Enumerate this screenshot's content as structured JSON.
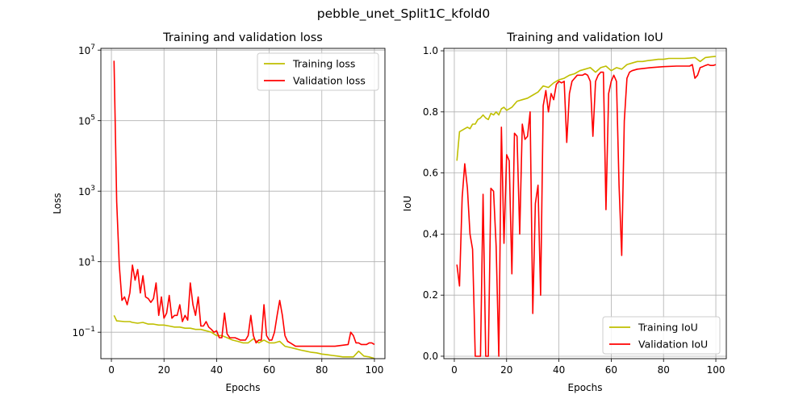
{
  "figure": {
    "suptitle": "pebble_unet_Split1C_kfold0"
  },
  "colors": {
    "training": "#bfbf00",
    "validation": "#ff0000",
    "grid": "#b0b0b0"
  },
  "chart_data": [
    {
      "type": "line",
      "title": "Training and validation loss",
      "xlabel": "Epochs",
      "ylabel": "Loss",
      "yscale": "log",
      "xlim": [
        -4,
        104
      ],
      "ylim_log10": [
        -1.75,
        7.05
      ],
      "xticks": [
        0,
        20,
        40,
        60,
        80,
        100
      ],
      "yticks": [
        {
          "value": 0.1,
          "base": "10",
          "exp": "−1"
        },
        {
          "value": 10,
          "base": "10",
          "exp": "1"
        },
        {
          "value": 1000,
          "base": "10",
          "exp": "3"
        },
        {
          "value": 100000,
          "base": "10",
          "exp": "5"
        },
        {
          "value": 10000000,
          "base": "10",
          "exp": "7"
        }
      ],
      "grid": true,
      "legend": "top-right",
      "series": [
        {
          "name": "Training loss",
          "x": [
            1,
            2,
            5,
            7,
            8,
            10,
            12,
            14,
            16,
            18,
            20,
            22,
            24,
            26,
            28,
            30,
            32,
            34,
            36,
            38,
            40,
            42,
            44,
            46,
            48,
            50,
            52,
            54,
            56,
            58,
            60,
            62,
            64,
            66,
            68,
            70,
            72,
            74,
            76,
            78,
            80,
            82,
            84,
            86,
            88,
            90,
            92,
            94,
            96,
            98,
            100
          ],
          "y": [
            0.3,
            0.21,
            0.2,
            0.2,
            0.19,
            0.18,
            0.19,
            0.17,
            0.17,
            0.16,
            0.16,
            0.15,
            0.14,
            0.14,
            0.13,
            0.13,
            0.12,
            0.12,
            0.11,
            0.1,
            0.08,
            0.08,
            0.07,
            0.06,
            0.055,
            0.05,
            0.05,
            0.065,
            0.05,
            0.06,
            0.05,
            0.05,
            0.055,
            0.04,
            0.037,
            0.034,
            0.031,
            0.029,
            0.027,
            0.026,
            0.024,
            0.023,
            0.022,
            0.021,
            0.02,
            0.02,
            0.02,
            0.029,
            0.021,
            0.02,
            0.018
          ]
        },
        {
          "name": "Validation loss",
          "x": [
            1,
            2,
            3,
            4,
            5,
            6,
            7,
            8,
            9,
            10,
            11,
            12,
            13,
            14,
            15,
            16,
            17,
            18,
            19,
            20,
            21,
            22,
            23,
            24,
            25,
            26,
            27,
            28,
            29,
            30,
            31,
            32,
            33,
            34,
            35,
            36,
            37,
            38,
            39,
            40,
            41,
            42,
            43,
            44,
            45,
            46,
            47,
            48,
            49,
            50,
            51,
            52,
            53,
            54,
            55,
            56,
            57,
            58,
            59,
            60,
            61,
            62,
            63,
            64,
            65,
            66,
            67,
            68,
            69,
            70,
            75,
            80,
            85,
            90,
            91,
            92,
            93,
            94,
            95,
            96,
            97,
            98,
            99,
            100
          ],
          "y": [
            5000000,
            500,
            8,
            0.8,
            1,
            0.6,
            1.3,
            8,
            3,
            6,
            1.3,
            4,
            1,
            0.9,
            0.7,
            0.9,
            2.5,
            0.3,
            1,
            0.25,
            0.35,
            1.1,
            0.25,
            0.3,
            0.3,
            0.6,
            0.2,
            0.3,
            0.22,
            2.5,
            0.6,
            0.3,
            1,
            0.15,
            0.15,
            0.2,
            0.14,
            0.12,
            0.1,
            0.11,
            0.07,
            0.07,
            0.35,
            0.09,
            0.07,
            0.07,
            0.07,
            0.065,
            0.06,
            0.06,
            0.06,
            0.08,
            0.3,
            0.08,
            0.05,
            0.06,
            0.06,
            0.6,
            0.08,
            0.06,
            0.06,
            0.1,
            0.3,
            0.8,
            0.3,
            0.08,
            0.055,
            0.05,
            0.045,
            0.04,
            0.04,
            0.04,
            0.04,
            0.045,
            0.1,
            0.08,
            0.05,
            0.05,
            0.045,
            0.045,
            0.045,
            0.05,
            0.05,
            0.045
          ]
        }
      ]
    },
    {
      "type": "line",
      "title": "Training and validation IoU",
      "xlabel": "Epochs",
      "ylabel": "IoU",
      "yscale": "linear",
      "xlim": [
        -4,
        104
      ],
      "ylim": [
        -0.008,
        1.008
      ],
      "xticks": [
        0,
        20,
        40,
        60,
        80,
        100
      ],
      "yticks": [
        0.0,
        0.2,
        0.4,
        0.6,
        0.8,
        1.0
      ],
      "grid": true,
      "legend": "bottom-right",
      "series": [
        {
          "name": "Training IoU",
          "x": [
            1,
            2,
            3,
            4,
            5,
            6,
            7,
            8,
            9,
            10,
            11,
            12,
            13,
            14,
            15,
            16,
            17,
            18,
            19,
            20,
            22,
            24,
            26,
            28,
            30,
            32,
            34,
            36,
            38,
            40,
            42,
            44,
            46,
            48,
            50,
            52,
            54,
            56,
            58,
            60,
            62,
            64,
            66,
            68,
            70,
            72,
            74,
            76,
            78,
            80,
            82,
            84,
            86,
            88,
            90,
            92,
            94,
            96,
            98,
            100
          ],
          "y": [
            0.64,
            0.735,
            0.74,
            0.745,
            0.75,
            0.745,
            0.76,
            0.76,
            0.775,
            0.78,
            0.79,
            0.78,
            0.775,
            0.795,
            0.79,
            0.8,
            0.79,
            0.81,
            0.815,
            0.805,
            0.815,
            0.835,
            0.84,
            0.845,
            0.855,
            0.865,
            0.885,
            0.88,
            0.895,
            0.905,
            0.91,
            0.92,
            0.925,
            0.935,
            0.94,
            0.945,
            0.93,
            0.945,
            0.95,
            0.935,
            0.945,
            0.94,
            0.955,
            0.96,
            0.965,
            0.965,
            0.968,
            0.97,
            0.972,
            0.972,
            0.975,
            0.975,
            0.975,
            0.975,
            0.976,
            0.978,
            0.965,
            0.978,
            0.98,
            0.982
          ]
        },
        {
          "name": "Validation IoU",
          "x": [
            1,
            2,
            3,
            4,
            5,
            6,
            7,
            8,
            9,
            10,
            11,
            12,
            13,
            14,
            15,
            16,
            17,
            18,
            19,
            20,
            21,
            22,
            23,
            24,
            25,
            26,
            27,
            28,
            29,
            30,
            31,
            32,
            33,
            34,
            35,
            36,
            37,
            38,
            39,
            40,
            41,
            42,
            43,
            44,
            45,
            46,
            47,
            48,
            49,
            50,
            51,
            52,
            53,
            54,
            55,
            56,
            57,
            58,
            59,
            60,
            61,
            62,
            63,
            64,
            65,
            66,
            67,
            68,
            70,
            75,
            80,
            85,
            90,
            91,
            92,
            93,
            94,
            95,
            96,
            97,
            98,
            99,
            100
          ],
          "y": [
            0.3,
            0.23,
            0.52,
            0.63,
            0.55,
            0.4,
            0.35,
            0.0,
            0.0,
            0.0,
            0.53,
            0.0,
            0.0,
            0.55,
            0.54,
            0.36,
            0.0,
            0.75,
            0.37,
            0.66,
            0.64,
            0.27,
            0.73,
            0.72,
            0.4,
            0.76,
            0.71,
            0.72,
            0.8,
            0.14,
            0.5,
            0.56,
            0.2,
            0.82,
            0.87,
            0.8,
            0.86,
            0.84,
            0.89,
            0.9,
            0.895,
            0.9,
            0.7,
            0.86,
            0.9,
            0.91,
            0.92,
            0.92,
            0.92,
            0.925,
            0.92,
            0.9,
            0.72,
            0.9,
            0.92,
            0.93,
            0.93,
            0.48,
            0.86,
            0.9,
            0.92,
            0.9,
            0.56,
            0.33,
            0.77,
            0.91,
            0.93,
            0.935,
            0.94,
            0.945,
            0.948,
            0.95,
            0.95,
            0.955,
            0.91,
            0.92,
            0.945,
            0.948,
            0.952,
            0.955,
            0.952,
            0.952,
            0.955
          ]
        }
      ]
    }
  ]
}
